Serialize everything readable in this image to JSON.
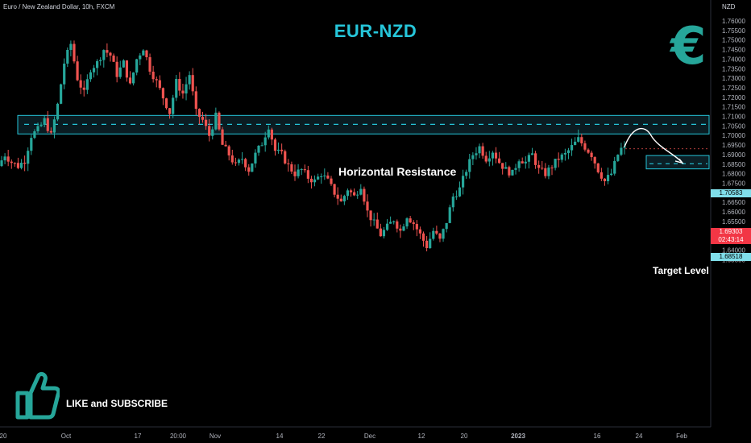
{
  "header": {
    "symbol_line": "Euro / New Zealand Dollar, 10h, FXCM",
    "title": "EUR-NZD",
    "currency": "NZD"
  },
  "annotations": {
    "resistance_label": "Horizontal Resistance",
    "target_label": "Target Level",
    "call_to_action": "LIKE and SUBSCRIBE",
    "brand_icon": "euro-symbol-icon",
    "thumb_icon": "thumbs-up-icon"
  },
  "price_tags": {
    "resistance": "1.70583",
    "current_price": "1.69303",
    "countdown": "02:43:14",
    "target": "1.68518"
  },
  "colors": {
    "bull": "#26a69a",
    "bear": "#ef5350",
    "accent": "#26c6da",
    "zone_border": "#26c6da",
    "zone_fill": "#0b1f26"
  },
  "chart_data": {
    "type": "candlestick",
    "title": "EUR-NZD",
    "symbol": "Euro / New Zealand Dollar, 10h, FXCM",
    "ylim": [
      1.635,
      1.762
    ],
    "y_ticks": [
      1.76,
      1.755,
      1.75,
      1.745,
      1.74,
      1.735,
      1.73,
      1.725,
      1.72,
      1.715,
      1.71,
      1.705,
      1.7,
      1.695,
      1.69,
      1.685,
      1.68,
      1.675,
      1.67,
      1.665,
      1.66,
      1.655,
      1.65,
      1.645,
      1.64,
      1.635
    ],
    "y_tick_labels": [
      "1.76000",
      "1.75500",
      "1.75000",
      "1.74500",
      "1.74000",
      "1.73500",
      "1.73000",
      "1.72500",
      "1.72000",
      "1.71500",
      "1.71000",
      "1.70500",
      "1.70000",
      "1.69500",
      "1.69000",
      "1.68500",
      "1.68000",
      "1.67500",
      "1.67000",
      "1.66500",
      "1.66000",
      "1.65500",
      "1.65000",
      "1.64500",
      "1.64000",
      "1.63500"
    ],
    "x_ticks": [
      "20",
      "Oct",
      "17",
      "20:00",
      "Nov",
      "14",
      "22",
      "Dec",
      "12",
      "20",
      "2023",
      "16",
      "24",
      "Feb"
    ],
    "resistance_zone": [
      1.7008,
      1.7105
    ],
    "resistance_level": 1.70583,
    "target_zone": [
      1.6825,
      1.6895
    ],
    "target_level": 1.68518,
    "last_price": 1.69303,
    "path_points": [
      {
        "i": 0,
        "y": 1.684
      },
      {
        "i": 2,
        "y": 1.69
      },
      {
        "i": 4,
        "y": 1.686
      },
      {
        "i": 6,
        "y": 1.684
      },
      {
        "i": 8,
        "y": 1.687
      },
      {
        "i": 10,
        "y": 1.7
      },
      {
        "i": 12,
        "y": 1.703
      },
      {
        "i": 14,
        "y": 1.708
      },
      {
        "i": 16,
        "y": 1.7
      },
      {
        "i": 18,
        "y": 1.716
      },
      {
        "i": 20,
        "y": 1.738
      },
      {
        "i": 22,
        "y": 1.748
      },
      {
        "i": 24,
        "y": 1.73
      },
      {
        "i": 26,
        "y": 1.722
      },
      {
        "i": 28,
        "y": 1.735
      },
      {
        "i": 30,
        "y": 1.738
      },
      {
        "i": 32,
        "y": 1.745
      },
      {
        "i": 34,
        "y": 1.742
      },
      {
        "i": 36,
        "y": 1.732
      },
      {
        "i": 38,
        "y": 1.738
      },
      {
        "i": 40,
        "y": 1.726
      },
      {
        "i": 42,
        "y": 1.74
      },
      {
        "i": 44,
        "y": 1.746
      },
      {
        "i": 46,
        "y": 1.735
      },
      {
        "i": 48,
        "y": 1.728
      },
      {
        "i": 50,
        "y": 1.72
      },
      {
        "i": 52,
        "y": 1.712
      },
      {
        "i": 54,
        "y": 1.728
      },
      {
        "i": 56,
        "y": 1.722
      },
      {
        "i": 58,
        "y": 1.732
      },
      {
        "i": 60,
        "y": 1.712
      },
      {
        "i": 62,
        "y": 1.708
      },
      {
        "i": 64,
        "y": 1.7
      },
      {
        "i": 66,
        "y": 1.71
      },
      {
        "i": 68,
        "y": 1.695
      },
      {
        "i": 70,
        "y": 1.69
      },
      {
        "i": 72,
        "y": 1.684
      },
      {
        "i": 74,
        "y": 1.688
      },
      {
        "i": 76,
        "y": 1.682
      },
      {
        "i": 78,
        "y": 1.69
      },
      {
        "i": 80,
        "y": 1.696
      },
      {
        "i": 82,
        "y": 1.705
      },
      {
        "i": 84,
        "y": 1.692
      },
      {
        "i": 86,
        "y": 1.69
      },
      {
        "i": 88,
        "y": 1.684
      },
      {
        "i": 90,
        "y": 1.68
      },
      {
        "i": 92,
        "y": 1.682
      },
      {
        "i": 94,
        "y": 1.678
      },
      {
        "i": 96,
        "y": 1.676
      },
      {
        "i": 98,
        "y": 1.68
      },
      {
        "i": 100,
        "y": 1.676
      },
      {
        "i": 102,
        "y": 1.67
      },
      {
        "i": 104,
        "y": 1.665
      },
      {
        "i": 106,
        "y": 1.672
      },
      {
        "i": 108,
        "y": 1.668
      },
      {
        "i": 110,
        "y": 1.674
      },
      {
        "i": 112,
        "y": 1.66
      },
      {
        "i": 114,
        "y": 1.654
      },
      {
        "i": 116,
        "y": 1.648
      },
      {
        "i": 118,
        "y": 1.652
      },
      {
        "i": 120,
        "y": 1.656
      },
      {
        "i": 122,
        "y": 1.65
      },
      {
        "i": 124,
        "y": 1.658
      },
      {
        "i": 126,
        "y": 1.654
      },
      {
        "i": 128,
        "y": 1.648
      },
      {
        "i": 130,
        "y": 1.642
      },
      {
        "i": 132,
        "y": 1.65
      },
      {
        "i": 134,
        "y": 1.645
      },
      {
        "i": 136,
        "y": 1.655
      },
      {
        "i": 138,
        "y": 1.668
      },
      {
        "i": 140,
        "y": 1.672
      },
      {
        "i": 142,
        "y": 1.682
      },
      {
        "i": 144,
        "y": 1.69
      },
      {
        "i": 146,
        "y": 1.694
      },
      {
        "i": 148,
        "y": 1.688
      },
      {
        "i": 150,
        "y": 1.692
      },
      {
        "i": 152,
        "y": 1.686
      },
      {
        "i": 154,
        "y": 1.682
      },
      {
        "i": 156,
        "y": 1.68
      },
      {
        "i": 158,
        "y": 1.688
      },
      {
        "i": 160,
        "y": 1.686
      },
      {
        "i": 162,
        "y": 1.69
      },
      {
        "i": 164,
        "y": 1.682
      },
      {
        "i": 166,
        "y": 1.68
      },
      {
        "i": 168,
        "y": 1.684
      },
      {
        "i": 170,
        "y": 1.688
      },
      {
        "i": 172,
        "y": 1.69
      },
      {
        "i": 174,
        "y": 1.694
      },
      {
        "i": 176,
        "y": 1.698
      },
      {
        "i": 178,
        "y": 1.694
      },
      {
        "i": 180,
        "y": 1.69
      },
      {
        "i": 182,
        "y": 1.682
      },
      {
        "i": 184,
        "y": 1.676
      },
      {
        "i": 186,
        "y": 1.68
      },
      {
        "i": 188,
        "y": 1.69
      },
      {
        "i": 189,
        "y": 1.693
      }
    ]
  }
}
